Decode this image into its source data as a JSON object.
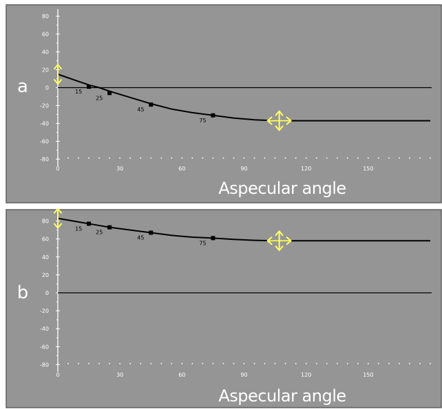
{
  "colors": {
    "panel_background": "#959595",
    "panel_border": "#5e5e5e",
    "axis": "#ffffff",
    "curve": "#000000",
    "handle": "#ffff66"
  },
  "chart_data": [
    {
      "type": "line",
      "panel_label": "a",
      "xlabel": "Aspecular  angle",
      "ylabel": "",
      "xlim": [
        0,
        180
      ],
      "ylim": [
        -85,
        85
      ],
      "x_ticks": [
        0,
        30,
        60,
        90,
        120,
        150
      ],
      "y_ticks": [
        80,
        60,
        40,
        20,
        0,
        -20,
        -40,
        -60,
        -80
      ],
      "grid": false,
      "reference_line_y": 0,
      "curve": {
        "x": [
          0,
          10,
          15,
          20,
          25,
          35,
          45,
          55,
          65,
          75,
          85,
          95,
          105,
          180
        ],
        "y": [
          15,
          7,
          3,
          0,
          -4,
          -11,
          -18,
          -24,
          -28,
          -31,
          -34,
          -36,
          -37,
          -37
        ]
      },
      "points": [
        {
          "label": "15",
          "x": 15,
          "y": 1
        },
        {
          "label": "25",
          "x": 25,
          "y": -6
        },
        {
          "label": "45",
          "x": 45,
          "y": -19
        },
        {
          "label": "75",
          "x": 75,
          "y": -31
        }
      ],
      "handles": [
        {
          "icon": "vertical-double-arrow-icon",
          "x": 0,
          "y": 15
        },
        {
          "icon": "four-way-arrow-icon",
          "x": 107,
          "y": -37
        }
      ]
    },
    {
      "type": "line",
      "panel_label": "b",
      "xlabel": "Aspecular  angle",
      "ylabel": "",
      "xlim": [
        0,
        180
      ],
      "ylim": [
        -85,
        85
      ],
      "x_ticks": [
        0,
        30,
        60,
        90,
        120,
        150
      ],
      "y_ticks": [
        80,
        60,
        40,
        20,
        0,
        -20,
        -40,
        -60,
        -80
      ],
      "grid": false,
      "reference_line_y": 0,
      "curve": {
        "x": [
          0,
          10,
          15,
          20,
          25,
          35,
          45,
          55,
          65,
          75,
          85,
          95,
          105,
          180
        ],
        "y": [
          83,
          79,
          77,
          75,
          73,
          70,
          67,
          64,
          62,
          61,
          59.5,
          58.5,
          58,
          58
        ]
      },
      "points": [
        {
          "label": "15",
          "x": 15,
          "y": 77
        },
        {
          "label": "25",
          "x": 25,
          "y": 73
        },
        {
          "label": "45",
          "x": 45,
          "y": 67
        },
        {
          "label": "75",
          "x": 75,
          "y": 61
        }
      ],
      "handles": [
        {
          "icon": "vertical-double-arrow-icon",
          "x": 0,
          "y": 83
        },
        {
          "icon": "four-way-arrow-icon",
          "x": 107,
          "y": 58
        }
      ]
    }
  ]
}
